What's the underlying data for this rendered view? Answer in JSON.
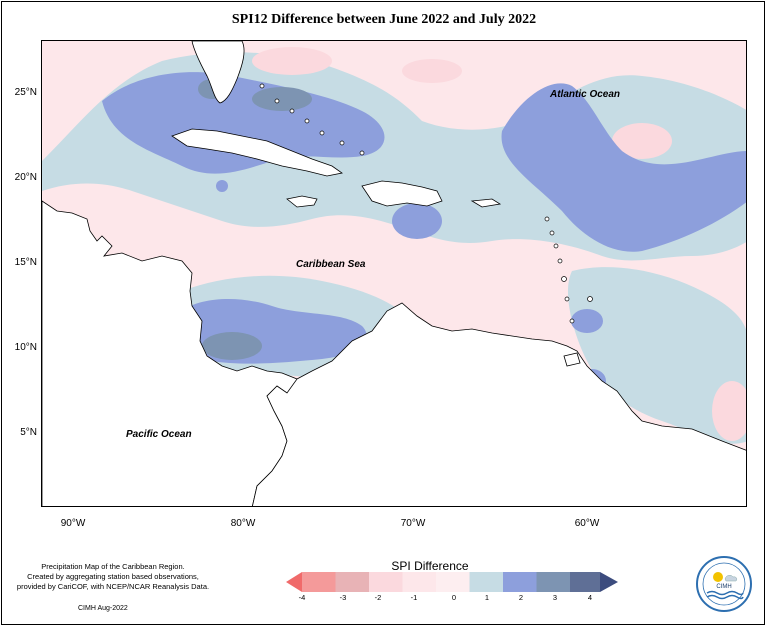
{
  "title": "SPI12 Difference between June 2022 and July 2022",
  "map": {
    "lat_labels": [
      "25°N",
      "20°N",
      "15°N",
      "10°N",
      "5°N"
    ],
    "lon_labels": [
      "90°W",
      "80°W",
      "70°W",
      "60°W"
    ],
    "place_labels": {
      "atlantic": "Atlantic Ocean",
      "caribbean": "Caribbean Sea",
      "pacific": "Pacific Ocean"
    },
    "colors": {
      "neg4": "#f06a6a",
      "neg3": "#f49a9a",
      "neg2": "#e8b3b6",
      "neg1": "#fbd9de",
      "zero": "#fde7ea",
      "pos1": "#c6dce4",
      "pos2": "#8d9fdc",
      "pos3": "#7d94b2",
      "pos4": "#3c4c7e",
      "land": "#ffffff"
    }
  },
  "legend": {
    "title": "SPI Difference",
    "ticks": [
      "-4",
      "-3",
      "-2",
      "-1",
      "0",
      "1",
      "2",
      "3",
      "4"
    ]
  },
  "footer": {
    "line1": "Precipitation Map of the Caribbean Region.",
    "line2": "Created by aggregating station based observations,",
    "line3": "provided by CariCOF, with NCEP/NCAR Reanalysis Data.",
    "credit": "CIMH Aug-2022"
  },
  "logo": {
    "text": "CIMH",
    "icon": "cimh-logo-icon"
  }
}
